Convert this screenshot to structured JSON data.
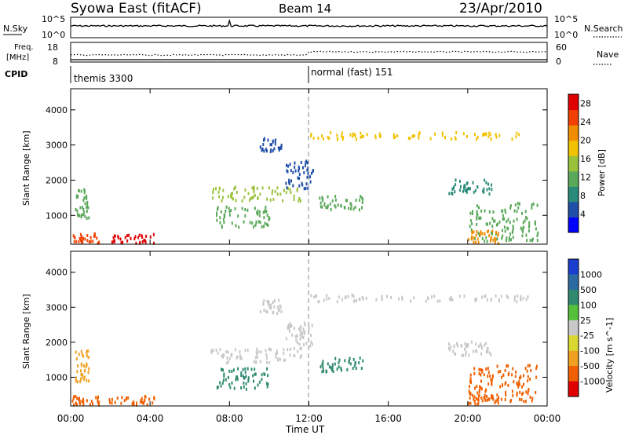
{
  "header": {
    "station": "Syowa East (fitACF)",
    "beam": "Beam 14",
    "date": "23/Apr/2010"
  },
  "top_panels": {
    "nsky_label": "N.Sky",
    "nsky_ticks": [
      "10^5",
      "10^0"
    ],
    "nsearch_label": "N.Search",
    "nsearch_ticks": [
      "10^5",
      "10^0"
    ],
    "freq_label_line1": "Freq.",
    "freq_label_line2": "[MHz]",
    "freq_ticks": [
      "18",
      "8"
    ],
    "nave_label": "Nave",
    "nave_ticks": [
      "60",
      "0"
    ],
    "cpid_label": "CPID",
    "cpid_segments": [
      {
        "label": "themis 3300",
        "start_hour": 0,
        "end_hour": 12
      },
      {
        "label": "normal (fast) 151",
        "start_hour": 12,
        "end_hour": 24
      }
    ]
  },
  "x_axis": {
    "title": "Time UT",
    "ticks": [
      "00:00",
      "04:00",
      "08:00",
      "12:00",
      "16:00",
      "20:00",
      "00:00"
    ]
  },
  "colors": {
    "power": [
      "#0000ff",
      "#1f4fa8",
      "#2a8a7a",
      "#5aa85a",
      "#99c23a",
      "#f2c200",
      "#f08c00",
      "#f04000",
      "#e00000"
    ],
    "velocity": [
      "#1a3fd0",
      "#2b6aa0",
      "#2f8a70",
      "#55c03a",
      "#c8c8c8",
      "#d8d830",
      "#f0a020",
      "#f06000",
      "#e00000"
    ]
  },
  "chart_data": [
    {
      "type": "heatmap",
      "panel": "power",
      "ylabel": "Slant Range [km]",
      "yticks": [
        "1000",
        "2000",
        "3000",
        "4000"
      ],
      "ylim": [
        180,
        4600
      ],
      "xlim_hours": [
        0,
        24
      ],
      "colorbar": {
        "title": "Power [dB]",
        "ticks": [
          "4",
          "8",
          "12",
          "16",
          "20",
          "24",
          "28"
        ],
        "range": [
          0,
          30
        ]
      },
      "regions": [
        {
          "t0": 0.05,
          "t1": 1.4,
          "r0": 250,
          "r1": 520,
          "value": 25
        },
        {
          "t0": 1.9,
          "t1": 4.2,
          "r0": 250,
          "r1": 500,
          "value": 27
        },
        {
          "t0": 0.2,
          "t1": 0.9,
          "r0": 900,
          "r1": 1800,
          "value": 10
        },
        {
          "t0": 7.0,
          "t1": 11.6,
          "r0": 1450,
          "r1": 1850,
          "value": 14
        },
        {
          "t0": 7.3,
          "t1": 10.0,
          "r0": 700,
          "r1": 1300,
          "value": 13
        },
        {
          "t0": 9.5,
          "t1": 10.6,
          "r0": 2850,
          "r1": 3250,
          "value": 6
        },
        {
          "t0": 10.8,
          "t1": 12.2,
          "r0": 1800,
          "r1": 2600,
          "value": 6
        },
        {
          "t0": 12.5,
          "t1": 14.7,
          "r0": 1200,
          "r1": 1600,
          "value": 10
        },
        {
          "t0": 19.0,
          "t1": 21.2,
          "r0": 1650,
          "r1": 2050,
          "value": 8
        },
        {
          "t0": 20.0,
          "t1": 23.5,
          "r0": 300,
          "r1": 1400,
          "value": 13
        },
        {
          "t0": 20.0,
          "t1": 21.6,
          "r0": 250,
          "r1": 600,
          "value": 22
        },
        {
          "t0": 12.0,
          "t1": 23.0,
          "r0": 3200,
          "r1": 3400,
          "value": 18
        }
      ]
    },
    {
      "type": "heatmap",
      "panel": "velocity",
      "ylabel": "Slant Range [km]",
      "yticks": [
        "1000",
        "2000",
        "3000",
        "4000"
      ],
      "ylim": [
        180,
        4600
      ],
      "xlim_hours": [
        0,
        24
      ],
      "colorbar": {
        "title": "Velocity [m s^-1]",
        "ticks": [
          "1000",
          "500",
          "100",
          "25",
          "-25",
          "-100",
          "-500",
          "-1000"
        ]
      },
      "regions": [
        {
          "t0": 0.05,
          "t1": 1.4,
          "r0": 250,
          "r1": 520,
          "value": -500
        },
        {
          "t0": 1.9,
          "t1": 4.2,
          "r0": 250,
          "r1": 500,
          "value": -500
        },
        {
          "t0": 0.2,
          "t1": 0.9,
          "r0": 900,
          "r1": 1800,
          "value": -100
        },
        {
          "t0": 7.0,
          "t1": 11.6,
          "r0": 1450,
          "r1": 1850,
          "value": 0
        },
        {
          "t0": 7.3,
          "t1": 10.0,
          "r0": 700,
          "r1": 1300,
          "value": 150
        },
        {
          "t0": 9.5,
          "t1": 10.6,
          "r0": 2850,
          "r1": 3250,
          "value": 0
        },
        {
          "t0": 10.8,
          "t1": 12.2,
          "r0": 1800,
          "r1": 2600,
          "value": 0
        },
        {
          "t0": 12.5,
          "t1": 14.7,
          "r0": 1200,
          "r1": 1600,
          "value": 100
        },
        {
          "t0": 19.0,
          "t1": 21.2,
          "r0": 1650,
          "r1": 2050,
          "value": 0
        },
        {
          "t0": 20.0,
          "t1": 23.5,
          "r0": 300,
          "r1": 1400,
          "value": -300
        },
        {
          "t0": 20.0,
          "t1": 21.6,
          "r0": 250,
          "r1": 600,
          "value": -600
        },
        {
          "t0": 12.0,
          "t1": 23.0,
          "r0": 3200,
          "r1": 3400,
          "value": 0
        }
      ]
    }
  ]
}
